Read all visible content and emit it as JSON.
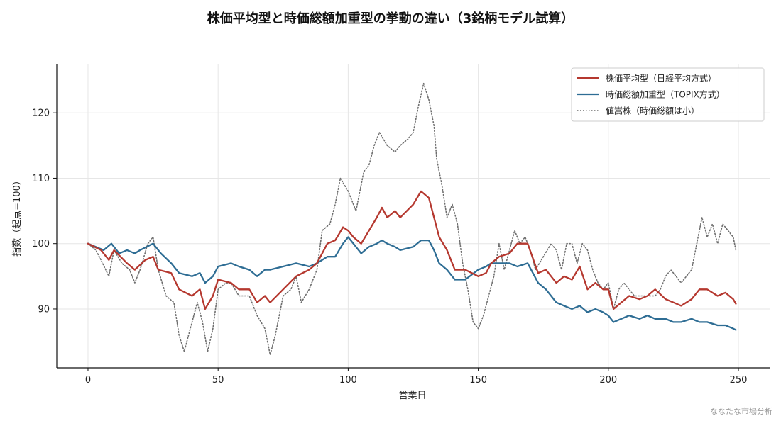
{
  "chart_data": {
    "type": "line",
    "title": "株価平均型と時価総額加重型の挙動の違い（3銘柄モデル試算）",
    "xlabel": "営業日",
    "ylabel": "指数（起点=100）",
    "xlim": [
      -12,
      262
    ],
    "ylim": [
      81,
      127.5
    ],
    "x_ticks": [
      0,
      50,
      100,
      150,
      200,
      250
    ],
    "y_ticks": [
      90,
      100,
      110,
      120
    ],
    "grid": true,
    "legend_position": "top-right",
    "series": [
      {
        "name": "株価平均型（日経平均方式）",
        "color": "#b5382f",
        "style": "solid",
        "points": [
          [
            0,
            100
          ],
          [
            5,
            99
          ],
          [
            8,
            97.5
          ],
          [
            10,
            99
          ],
          [
            15,
            97
          ],
          [
            18,
            96
          ],
          [
            22,
            97.5
          ],
          [
            25,
            98
          ],
          [
            27,
            96
          ],
          [
            32,
            95.5
          ],
          [
            35,
            93
          ],
          [
            40,
            92
          ],
          [
            43,
            93
          ],
          [
            45,
            90
          ],
          [
            48,
            92
          ],
          [
            50,
            94.5
          ],
          [
            55,
            94
          ],
          [
            58,
            93
          ],
          [
            62,
            93
          ],
          [
            65,
            91
          ],
          [
            68,
            92
          ],
          [
            70,
            91
          ],
          [
            75,
            93
          ],
          [
            80,
            95
          ],
          [
            85,
            96
          ],
          [
            88,
            97
          ],
          [
            92,
            100
          ],
          [
            95,
            100.5
          ],
          [
            98,
            102.5
          ],
          [
            100,
            102
          ],
          [
            102,
            101
          ],
          [
            105,
            100
          ],
          [
            108,
            102
          ],
          [
            111,
            104
          ],
          [
            113,
            105.5
          ],
          [
            115,
            104
          ],
          [
            118,
            105
          ],
          [
            120,
            104
          ],
          [
            125,
            106
          ],
          [
            128,
            108
          ],
          [
            131,
            107
          ],
          [
            133,
            104
          ],
          [
            135,
            101
          ],
          [
            138,
            99
          ],
          [
            141,
            96
          ],
          [
            145,
            96
          ],
          [
            150,
            95
          ],
          [
            153,
            95.5
          ],
          [
            155,
            97
          ],
          [
            158,
            98
          ],
          [
            162,
            98.5
          ],
          [
            165,
            100
          ],
          [
            169,
            100
          ],
          [
            173,
            95.5
          ],
          [
            176,
            96
          ],
          [
            180,
            94
          ],
          [
            183,
            95
          ],
          [
            186,
            94.5
          ],
          [
            189,
            96.5
          ],
          [
            192,
            93
          ],
          [
            195,
            94
          ],
          [
            198,
            93
          ],
          [
            200,
            93
          ],
          [
            202,
            90
          ],
          [
            205,
            91
          ],
          [
            208,
            92
          ],
          [
            212,
            91.5
          ],
          [
            215,
            92
          ],
          [
            218,
            93
          ],
          [
            222,
            91.5
          ],
          [
            225,
            91
          ],
          [
            228,
            90.5
          ],
          [
            232,
            91.5
          ],
          [
            235,
            93
          ],
          [
            238,
            93
          ],
          [
            242,
            92
          ],
          [
            245,
            92.5
          ],
          [
            248,
            91.5
          ],
          [
            249,
            90.8
          ]
        ]
      },
      {
        "name": "時価総額加重型（TOPIX方式）",
        "color": "#2e6d94",
        "style": "solid",
        "points": [
          [
            0,
            100
          ],
          [
            3,
            99.5
          ],
          [
            6,
            99
          ],
          [
            9,
            100
          ],
          [
            12,
            98.5
          ],
          [
            15,
            99
          ],
          [
            18,
            98.5
          ],
          [
            20,
            99
          ],
          [
            25,
            100
          ],
          [
            28,
            98.5
          ],
          [
            32,
            97
          ],
          [
            35,
            95.5
          ],
          [
            40,
            95
          ],
          [
            43,
            95.5
          ],
          [
            45,
            94
          ],
          [
            48,
            95
          ],
          [
            50,
            96.5
          ],
          [
            55,
            97
          ],
          [
            58,
            96.5
          ],
          [
            62,
            96
          ],
          [
            65,
            95
          ],
          [
            68,
            96
          ],
          [
            70,
            96
          ],
          [
            75,
            96.5
          ],
          [
            80,
            97
          ],
          [
            85,
            96.5
          ],
          [
            88,
            97
          ],
          [
            92,
            98
          ],
          [
            95,
            98
          ],
          [
            98,
            100
          ],
          [
            100,
            101
          ],
          [
            102,
            100
          ],
          [
            105,
            98.5
          ],
          [
            108,
            99.5
          ],
          [
            111,
            100
          ],
          [
            113,
            100.5
          ],
          [
            115,
            100
          ],
          [
            118,
            99.5
          ],
          [
            120,
            99
          ],
          [
            125,
            99.5
          ],
          [
            128,
            100.5
          ],
          [
            131,
            100.5
          ],
          [
            133,
            99
          ],
          [
            135,
            97
          ],
          [
            138,
            96
          ],
          [
            141,
            94.5
          ],
          [
            145,
            94.5
          ],
          [
            150,
            96
          ],
          [
            153,
            96.5
          ],
          [
            155,
            97
          ],
          [
            158,
            97
          ],
          [
            162,
            97
          ],
          [
            165,
            96.5
          ],
          [
            169,
            97
          ],
          [
            173,
            94
          ],
          [
            176,
            93
          ],
          [
            180,
            91
          ],
          [
            183,
            90.5
          ],
          [
            186,
            90
          ],
          [
            189,
            90.5
          ],
          [
            192,
            89.5
          ],
          [
            195,
            90
          ],
          [
            198,
            89.5
          ],
          [
            200,
            89
          ],
          [
            202,
            88
          ],
          [
            205,
            88.5
          ],
          [
            208,
            89
          ],
          [
            212,
            88.5
          ],
          [
            215,
            89
          ],
          [
            218,
            88.5
          ],
          [
            222,
            88.5
          ],
          [
            225,
            88
          ],
          [
            228,
            88
          ],
          [
            232,
            88.5
          ],
          [
            235,
            88
          ],
          [
            238,
            88
          ],
          [
            242,
            87.5
          ],
          [
            245,
            87.5
          ],
          [
            248,
            87
          ],
          [
            249,
            86.8
          ]
        ]
      },
      {
        "name": "値嵩株（時価総額は小）",
        "color": "#6e6e6e",
        "style": "dotted",
        "points": [
          [
            0,
            100
          ],
          [
            3,
            99
          ],
          [
            5,
            97.5
          ],
          [
            8,
            95
          ],
          [
            10,
            99
          ],
          [
            13,
            97
          ],
          [
            16,
            96
          ],
          [
            18,
            94
          ],
          [
            20,
            96
          ],
          [
            23,
            100
          ],
          [
            25,
            101
          ],
          [
            27,
            96
          ],
          [
            30,
            92
          ],
          [
            33,
            91
          ],
          [
            35,
            86
          ],
          [
            37,
            83.5
          ],
          [
            40,
            88
          ],
          [
            42,
            91
          ],
          [
            44,
            88
          ],
          [
            46,
            83.5
          ],
          [
            48,
            87
          ],
          [
            50,
            93
          ],
          [
            53,
            94
          ],
          [
            55,
            94
          ],
          [
            58,
            92
          ],
          [
            62,
            92
          ],
          [
            65,
            89
          ],
          [
            68,
            87
          ],
          [
            70,
            83
          ],
          [
            72,
            86
          ],
          [
            75,
            92
          ],
          [
            78,
            93
          ],
          [
            80,
            95
          ],
          [
            82,
            91
          ],
          [
            85,
            93
          ],
          [
            88,
            96
          ],
          [
            90,
            102
          ],
          [
            93,
            103
          ],
          [
            95,
            106
          ],
          [
            97,
            110
          ],
          [
            100,
            108
          ],
          [
            103,
            105
          ],
          [
            106,
            111
          ],
          [
            108,
            112
          ],
          [
            110,
            115
          ],
          [
            112,
            117
          ],
          [
            115,
            115
          ],
          [
            118,
            114
          ],
          [
            120,
            115
          ],
          [
            123,
            116
          ],
          [
            125,
            117
          ],
          [
            127,
            121
          ],
          [
            129,
            124.5
          ],
          [
            131,
            122
          ],
          [
            133,
            118
          ],
          [
            134,
            113
          ],
          [
            136,
            109
          ],
          [
            138,
            104
          ],
          [
            140,
            106
          ],
          [
            142,
            103
          ],
          [
            144,
            97
          ],
          [
            146,
            93
          ],
          [
            148,
            88
          ],
          [
            150,
            87
          ],
          [
            152,
            89
          ],
          [
            154,
            92
          ],
          [
            156,
            95
          ],
          [
            158,
            100
          ],
          [
            160,
            96
          ],
          [
            162,
            99
          ],
          [
            164,
            102
          ],
          [
            166,
            100
          ],
          [
            168,
            101
          ],
          [
            170,
            99
          ],
          [
            172,
            96
          ],
          [
            175,
            98
          ],
          [
            178,
            100
          ],
          [
            180,
            99
          ],
          [
            182,
            96
          ],
          [
            184,
            100
          ],
          [
            186,
            100
          ],
          [
            188,
            97
          ],
          [
            190,
            100
          ],
          [
            192,
            99
          ],
          [
            194,
            96
          ],
          [
            196,
            94
          ],
          [
            198,
            93
          ],
          [
            200,
            94
          ],
          [
            202,
            90
          ],
          [
            204,
            93
          ],
          [
            206,
            94
          ],
          [
            208,
            93
          ],
          [
            210,
            92
          ],
          [
            213,
            92
          ],
          [
            216,
            92
          ],
          [
            218,
            92
          ],
          [
            220,
            93
          ],
          [
            222,
            95
          ],
          [
            224,
            96
          ],
          [
            226,
            95
          ],
          [
            228,
            94
          ],
          [
            230,
            95
          ],
          [
            232,
            96
          ],
          [
            234,
            100
          ],
          [
            236,
            104
          ],
          [
            238,
            101
          ],
          [
            240,
            103
          ],
          [
            242,
            100
          ],
          [
            244,
            103
          ],
          [
            246,
            102
          ],
          [
            248,
            101
          ],
          [
            249,
            99
          ]
        ]
      }
    ],
    "watermark": "ななたな市場分析"
  }
}
